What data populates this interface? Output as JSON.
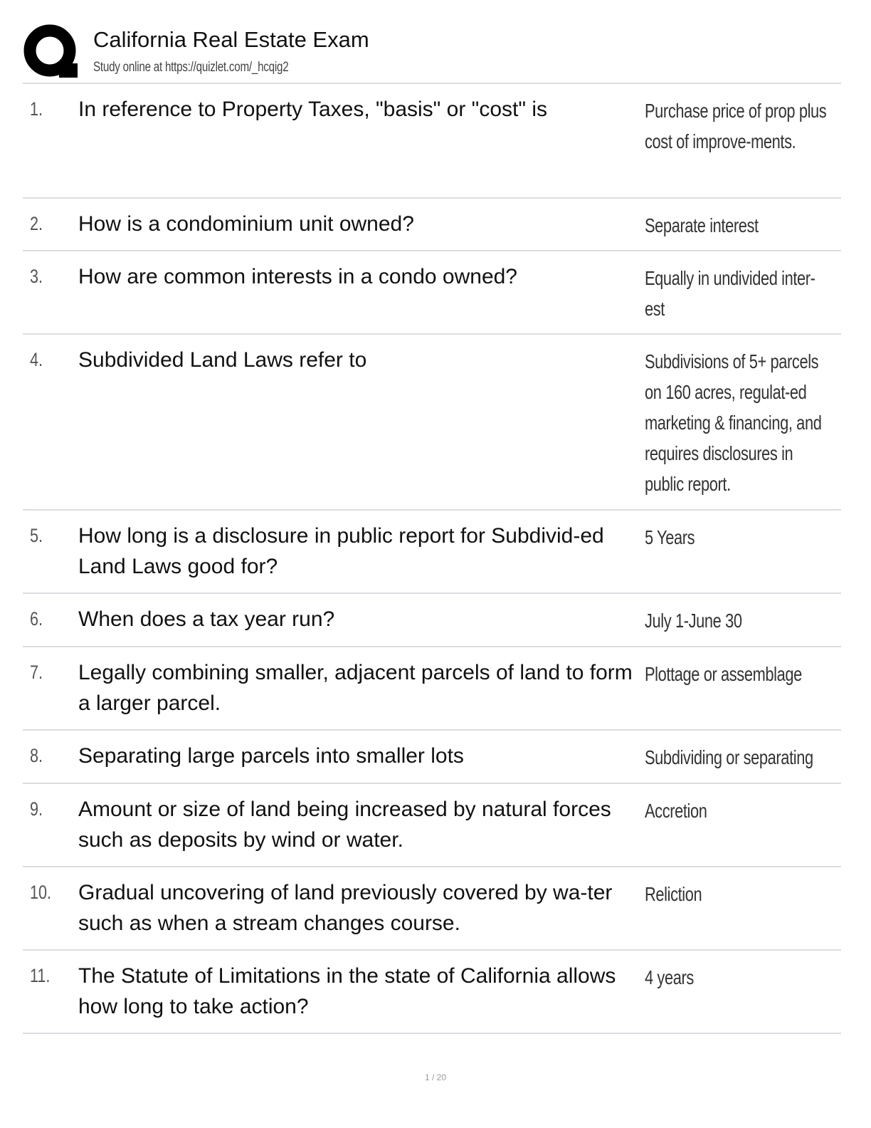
{
  "header": {
    "title": "California Real Estate Exam",
    "subtitle": "Study online at https://quizlet.com/_hcqig2",
    "logo": "quizlet-q-logo"
  },
  "cards": [
    {
      "num": "1.",
      "question": "In reference to Property Taxes, \"basis\" or \"cost\" is",
      "answer": "Purchase price of prop plus cost of improve-ments."
    },
    {
      "num": "2.",
      "question": "How is a condominium unit owned?",
      "answer": "Separate interest"
    },
    {
      "num": "3.",
      "question": "How are common interests in a condo owned?",
      "answer": "Equally in undivided inter-est"
    },
    {
      "num": "4.",
      "question": "Subdivided Land Laws refer to",
      "answer": "Subdivisions of 5+ parcels on 160 acres, regulat-ed marketing & financing, and requires disclosures in public report."
    },
    {
      "num": "5.",
      "question": "How long is a disclosure in public report for Subdivid-ed Land Laws good for?",
      "answer": "5 Years"
    },
    {
      "num": "6.",
      "question": "When does a tax year run?",
      "answer": "July 1-June 30"
    },
    {
      "num": "7.",
      "question": "Legally combining smaller, adjacent parcels of land to form a larger parcel.",
      "answer": "Plottage or assemblage"
    },
    {
      "num": "8.",
      "question": "Separating large parcels into smaller lots",
      "answer": "Subdividing or separating"
    },
    {
      "num": "9.",
      "question": "Amount or size of land being increased by natural forces such as deposits by wind or water.",
      "answer": "Accretion"
    },
    {
      "num": "10.",
      "question": "Gradual uncovering of land previously covered by wa-ter such as when a stream changes course.",
      "answer": "Reliction"
    },
    {
      "num": "11.",
      "question": "The Statute of Limitations in the state of California allows how long to take action?",
      "answer": "4 years"
    }
  ],
  "footer": {
    "page": "1 / 20"
  }
}
